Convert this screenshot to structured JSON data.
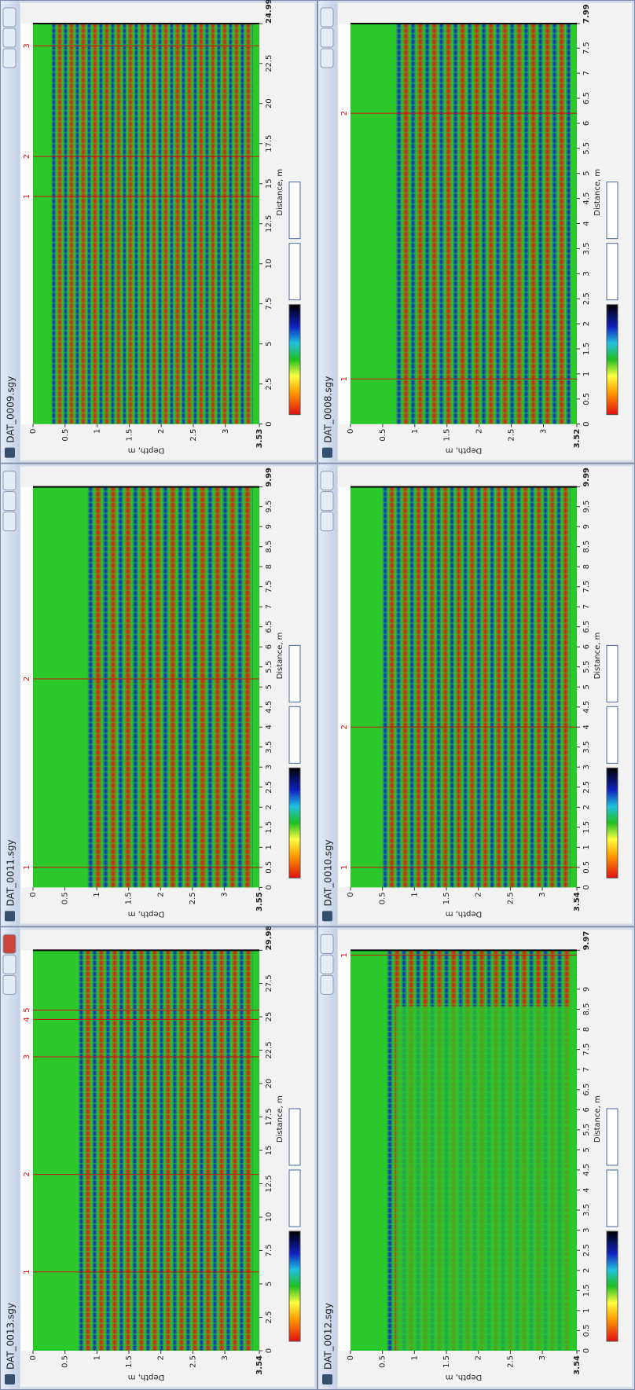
{
  "windows": [
    {
      "title": "DAT_0013.sgy",
      "depth_axis": {
        "label": "Depth, m",
        "ticks": [
          0,
          0.5,
          1,
          1.5,
          2,
          2.5,
          3,
          3.54
        ]
      },
      "distance_axis": {
        "label": "Distance, m",
        "ticks": [
          0,
          2.5,
          5,
          7.5,
          10,
          12.5,
          15,
          17.5,
          20,
          22.5,
          25,
          27.5,
          29.98
        ]
      },
      "markers": [
        {
          "label": "1",
          "distance": 5.9
        },
        {
          "label": "2",
          "distance": 13.2
        },
        {
          "label": "3",
          "distance": 22
        },
        {
          "label": "4",
          "distance": 24.8
        },
        {
          "label": "5",
          "distance": 25.5
        }
      ]
    },
    {
      "title": "DAT_0011.sgy",
      "depth_axis": {
        "label": "Depth, m",
        "ticks": [
          0,
          0.5,
          1,
          1.5,
          2,
          2.5,
          3,
          3.55
        ]
      },
      "distance_axis": {
        "label": "Distance, m",
        "ticks": [
          0,
          0.5,
          1,
          1.5,
          2,
          2.5,
          3,
          3.5,
          4,
          4.5,
          5,
          5.5,
          6,
          6.5,
          7,
          7.5,
          8,
          8.5,
          9,
          9.5,
          9.99
        ]
      },
      "markers": [
        {
          "label": "1",
          "distance": 0.5
        },
        {
          "label": "2",
          "distance": 5.2
        }
      ]
    },
    {
      "title": "DAT_0009.sgy",
      "depth_axis": {
        "label": "Depth, m",
        "ticks": [
          0,
          0.5,
          1,
          1.5,
          2,
          2.5,
          3,
          3.53
        ]
      },
      "distance_axis": {
        "label": "Distance, m",
        "ticks": [
          0,
          2.5,
          5,
          7.5,
          10,
          12.5,
          15,
          17.5,
          20,
          22.5,
          24.99
        ]
      },
      "markers": [
        {
          "label": "1",
          "distance": 14.2
        },
        {
          "label": "2",
          "distance": 16.7
        },
        {
          "label": "3",
          "distance": 23.6
        }
      ]
    },
    {
      "title": "DAT_0012.sgy",
      "depth_axis": {
        "label": "Depth, m",
        "ticks": [
          0,
          0.5,
          1,
          1.5,
          2,
          2.5,
          3,
          3.54
        ]
      },
      "distance_axis": {
        "label": "Distance, m",
        "ticks": [
          0,
          0.5,
          1,
          1.5,
          2,
          2.5,
          3,
          3.5,
          4,
          4.5,
          5,
          5.5,
          6,
          6.5,
          7,
          7.5,
          8,
          8.5,
          9,
          9.97
        ]
      },
      "markers": [
        {
          "label": "1",
          "distance": 9.85
        }
      ]
    },
    {
      "title": "DAT_0010.sgy",
      "depth_axis": {
        "label": "Depth, m",
        "ticks": [
          0,
          0.5,
          1,
          1.5,
          2,
          2.5,
          3,
          3.54
        ]
      },
      "distance_axis": {
        "label": "Distance, m",
        "ticks": [
          0,
          0.5,
          1,
          1.5,
          2,
          2.5,
          3,
          3.5,
          4,
          4.5,
          5,
          5.5,
          6,
          6.5,
          7,
          7.5,
          8,
          8.5,
          9,
          9.5,
          9.99
        ]
      },
      "markers": [
        {
          "label": "1",
          "distance": 0.5
        },
        {
          "label": "2",
          "distance": 4
        }
      ]
    },
    {
      "title": "DAT_0008.sgy",
      "depth_axis": {
        "label": "Depth, m",
        "ticks": [
          0,
          0.5,
          1,
          1.5,
          2,
          2.5,
          3,
          3.52
        ]
      },
      "distance_axis": {
        "label": "Distance, m",
        "ticks": [
          0,
          0.5,
          1,
          1.5,
          2,
          2.5,
          3,
          3.5,
          4,
          4.5,
          5,
          5.5,
          6,
          6.5,
          7,
          7.5,
          7.99
        ]
      },
      "markers": [
        {
          "label": "1",
          "distance": 0.9
        },
        {
          "label": "2",
          "distance": 6.2
        }
      ]
    }
  ]
}
